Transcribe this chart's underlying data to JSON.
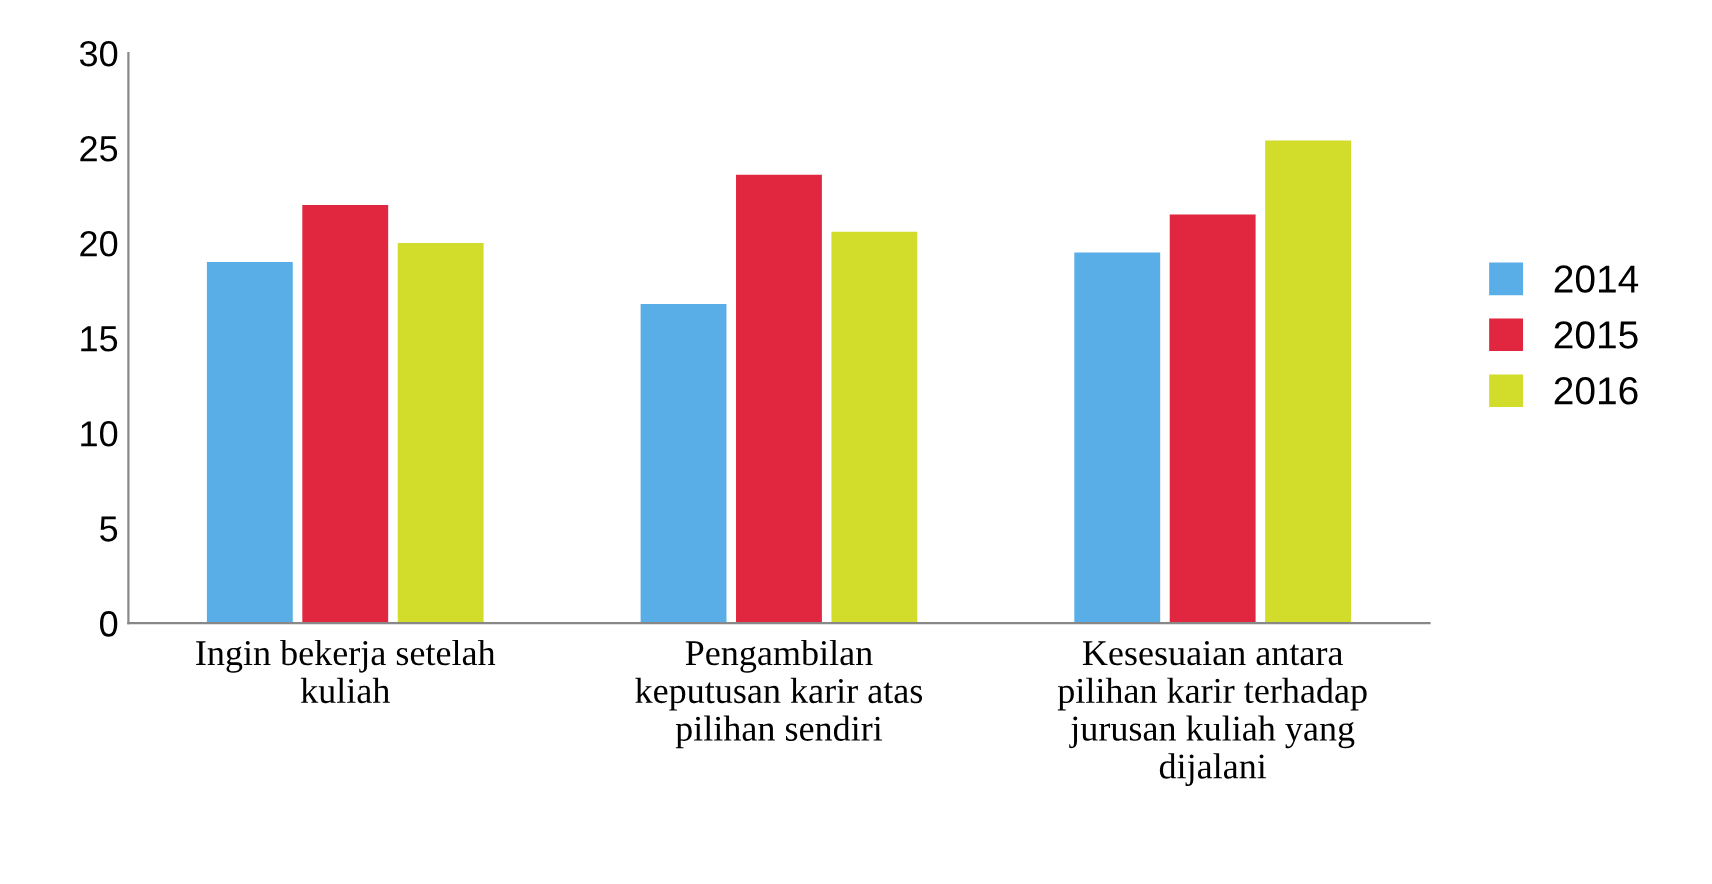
{
  "chart_data": {
    "type": "bar",
    "categories": [
      "Ingin bekerja setelah\nkuliah",
      "Pengambilan\nkeputusan karir atas\npilihan sendiri",
      "Kesesuaian antara\npilihan karir terhadap\njurusan kuliah yang\ndijalani"
    ],
    "series": [
      {
        "name": "2014",
        "color": "#5aaee8",
        "values": [
          19,
          16.8,
          19.5
        ]
      },
      {
        "name": "2015",
        "color": "#e0273f",
        "values": [
          22,
          23.6,
          21.5
        ]
      },
      {
        "name": "2016",
        "color": "#d2dc2a",
        "values": [
          20,
          20.6,
          25.4
        ]
      }
    ],
    "ylim": [
      0,
      30
    ],
    "yticks": [
      0,
      5,
      10,
      15,
      20,
      25,
      30
    ],
    "grid": false,
    "legend": "right"
  }
}
